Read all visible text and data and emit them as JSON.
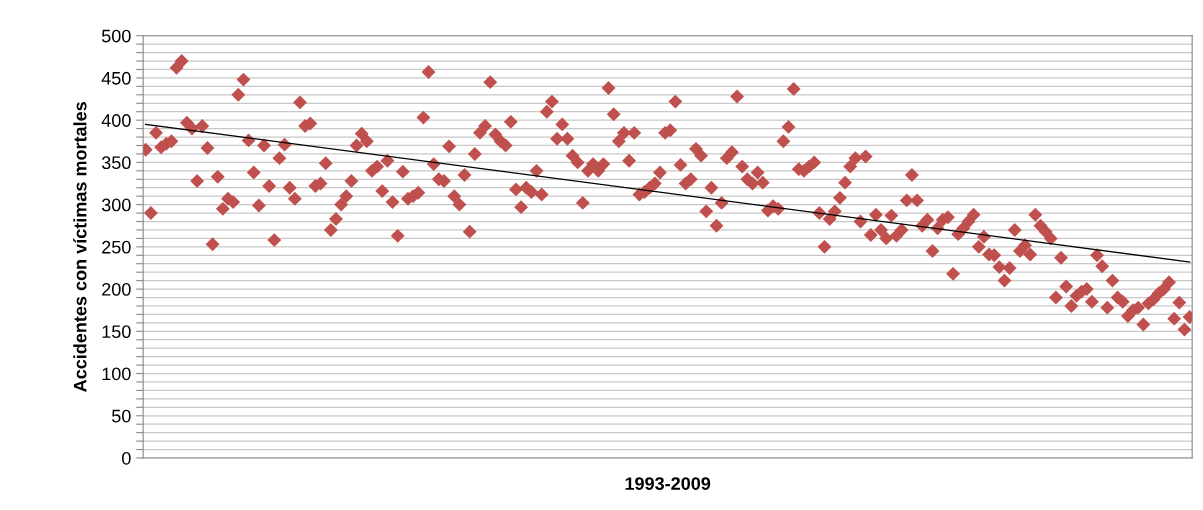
{
  "chart_data": {
    "type": "scatter",
    "xlabel": "1993-2009",
    "ylabel": "Accidentes con víctimas mortales",
    "categories": [
      null,
      null,
      null,
      null,
      null,
      null,
      null,
      null,
      null,
      null,
      null,
      null,
      null,
      null,
      null,
      null,
      null,
      null,
      null,
      null,
      null,
      null,
      null,
      null,
      null,
      null,
      null,
      null,
      null,
      null,
      null,
      null,
      null,
      null,
      null,
      null,
      null,
      null,
      null,
      null,
      null,
      null,
      null,
      null,
      null,
      null,
      null,
      null,
      null,
      null,
      null,
      null,
      null,
      null,
      null,
      null,
      null,
      null,
      null,
      null,
      null,
      null,
      null,
      null,
      null,
      null,
      null,
      null,
      null,
      null,
      null,
      null,
      null,
      null,
      null,
      null,
      null,
      null,
      null,
      null,
      null,
      null,
      null,
      null,
      null,
      null,
      null,
      null,
      null,
      null,
      null,
      null,
      null,
      null,
      null,
      null,
      null,
      null,
      null,
      null,
      null,
      null,
      null,
      null,
      null,
      null,
      null,
      null,
      null,
      null,
      null,
      null,
      null,
      null,
      null,
      null,
      null,
      null,
      null,
      null,
      null,
      null,
      null,
      null,
      null,
      null,
      null,
      null,
      null,
      null,
      null,
      null,
      null,
      null,
      null,
      null,
      null,
      null,
      null,
      null,
      null,
      null,
      null,
      null,
      null,
      null,
      null,
      null,
      null,
      null,
      null,
      null,
      null,
      null,
      null,
      null,
      null,
      null,
      null,
      null,
      null,
      null,
      null,
      null,
      null,
      null,
      null,
      null,
      null,
      null,
      null,
      null,
      null,
      null,
      null,
      null,
      null,
      null,
      null,
      null,
      null,
      null,
      null,
      null,
      null,
      null,
      null,
      null,
      null,
      null,
      null,
      null,
      null,
      null,
      null,
      null,
      null,
      null,
      null,
      null,
      null,
      null,
      null,
      null
    ],
    "series": [
      {
        "color": "#c0504d",
        "marker": "diamond",
        "values": [
          365,
          290,
          385,
          368,
          372,
          375,
          462,
          470,
          397,
          390,
          328,
          393,
          367,
          253,
          333,
          295,
          307,
          303,
          430,
          448,
          376,
          338,
          299,
          370,
          322,
          258,
          355,
          371,
          320,
          307,
          421,
          393,
          396,
          322,
          325,
          349,
          270,
          283,
          300,
          310,
          328,
          370,
          384,
          375,
          340,
          345,
          316,
          352,
          303,
          263,
          339,
          307,
          310,
          314,
          403,
          457,
          348,
          330,
          328,
          369,
          310,
          300,
          335,
          268,
          360,
          385,
          393,
          445,
          383,
          375,
          370,
          398,
          318,
          297,
          320,
          315,
          340,
          312,
          410,
          422,
          378,
          395,
          378,
          358,
          350,
          302,
          340,
          348,
          340,
          348,
          438,
          407,
          375,
          385,
          352,
          385,
          312,
          315,
          320,
          325,
          338,
          385,
          388,
          422,
          347,
          325,
          330,
          366,
          358,
          292,
          320,
          275,
          302,
          355,
          362,
          428,
          345,
          330,
          325,
          338,
          326,
          293,
          298,
          295,
          375,
          392,
          437,
          342,
          340,
          345,
          350,
          290,
          250,
          283,
          292,
          308,
          326,
          345,
          355,
          280,
          357,
          264,
          288,
          270,
          260,
          287,
          263,
          270,
          305,
          335,
          305,
          275,
          282,
          245,
          272,
          282,
          285,
          218,
          265,
          272,
          280,
          288,
          250,
          262,
          241,
          240,
          226,
          210,
          225,
          270,
          245,
          252,
          241,
          288,
          275,
          268,
          260,
          190,
          237,
          203,
          180,
          192,
          197,
          200,
          185,
          240,
          227,
          178,
          210,
          190,
          185,
          168,
          175,
          178,
          158,
          183,
          188,
          195,
          200,
          208,
          165,
          184,
          152,
          167
        ]
      },
      {
        "type": "line",
        "color": "#000000",
        "line_style": "solid",
        "values": [
          395,
          null,
          null,
          null,
          null,
          null,
          null,
          null,
          null,
          null,
          null,
          null,
          null,
          null,
          null,
          null,
          null,
          null,
          null,
          null,
          null,
          null,
          null,
          null,
          null,
          null,
          null,
          null,
          null,
          null,
          null,
          null,
          null,
          null,
          null,
          null,
          null,
          null,
          null,
          null,
          null,
          null,
          null,
          null,
          null,
          null,
          null,
          null,
          null,
          null,
          null,
          null,
          null,
          null,
          null,
          null,
          null,
          null,
          null,
          null,
          null,
          null,
          null,
          null,
          null,
          null,
          null,
          null,
          null,
          null,
          null,
          null,
          null,
          null,
          null,
          null,
          null,
          null,
          null,
          null,
          null,
          null,
          null,
          null,
          null,
          null,
          null,
          null,
          null,
          null,
          null,
          null,
          null,
          null,
          null,
          null,
          null,
          null,
          null,
          null,
          null,
          null,
          null,
          null,
          null,
          null,
          null,
          null,
          null,
          null,
          null,
          null,
          null,
          null,
          null,
          null,
          null,
          null,
          null,
          null,
          null,
          null,
          null,
          null,
          null,
          null,
          null,
          null,
          null,
          null,
          null,
          null,
          null,
          null,
          null,
          null,
          null,
          null,
          null,
          null,
          null,
          null,
          null,
          null,
          null,
          null,
          null,
          null,
          null,
          null,
          null,
          null,
          null,
          null,
          null,
          null,
          null,
          null,
          null,
          null,
          null,
          null,
          null,
          null,
          null,
          null,
          null,
          null,
          null,
          null,
          null,
          null,
          null,
          null,
          null,
          null,
          null,
          null,
          null,
          null,
          null,
          null,
          null,
          null,
          null,
          null,
          null,
          null,
          null,
          null,
          null,
          null,
          null,
          null,
          null,
          null,
          null,
          null,
          null,
          null,
          null,
          null,
          null,
          232
        ]
      }
    ],
    "ylim": [
      0,
      500
    ],
    "yticks": [
      0,
      {
        "value": 10,
        "label": null
      },
      {
        "value": 20,
        "label": null
      },
      {
        "value": 30,
        "label": null
      },
      {
        "value": 40,
        "label": null
      },
      50,
      {
        "value": 60,
        "label": null
      },
      {
        "value": 70,
        "label": null
      },
      {
        "value": 80,
        "label": null
      },
      {
        "value": 90,
        "label": null
      },
      100,
      {
        "value": 110,
        "label": null
      },
      {
        "value": 120,
        "label": null
      },
      {
        "value": 130,
        "label": null
      },
      {
        "value": 140,
        "label": null
      },
      150,
      {
        "value": 160,
        "label": null
      },
      {
        "value": 170,
        "label": null
      },
      {
        "value": 180,
        "label": null
      },
      {
        "value": 190,
        "label": null
      },
      200,
      {
        "value": 210,
        "label": null
      },
      {
        "value": 220,
        "label": null
      },
      {
        "value": 230,
        "label": null
      },
      {
        "value": 240,
        "label": null
      },
      250,
      {
        "value": 260,
        "label": null
      },
      {
        "value": 270,
        "label": null
      },
      {
        "value": 280,
        "label": null
      },
      {
        "value": 290,
        "label": null
      },
      300,
      {
        "value": 310,
        "label": null
      },
      {
        "value": 320,
        "label": null
      },
      {
        "value": 330,
        "label": null
      },
      {
        "value": 340,
        "label": null
      },
      350,
      {
        "value": 360,
        "label": null
      },
      {
        "value": 370,
        "label": null
      },
      {
        "value": 380,
        "label": null
      },
      {
        "value": 390,
        "label": null
      },
      400,
      {
        "value": 410,
        "label": null
      },
      {
        "value": 420,
        "label": null
      },
      {
        "value": 430,
        "label": null
      },
      {
        "value": 440,
        "label": null
      },
      450,
      {
        "value": 460,
        "label": null
      },
      {
        "value": 470,
        "label": null
      },
      {
        "value": 480,
        "label": null
      },
      {
        "value": 490,
        "label": null
      },
      500
    ],
    "grid": "y"
  }
}
